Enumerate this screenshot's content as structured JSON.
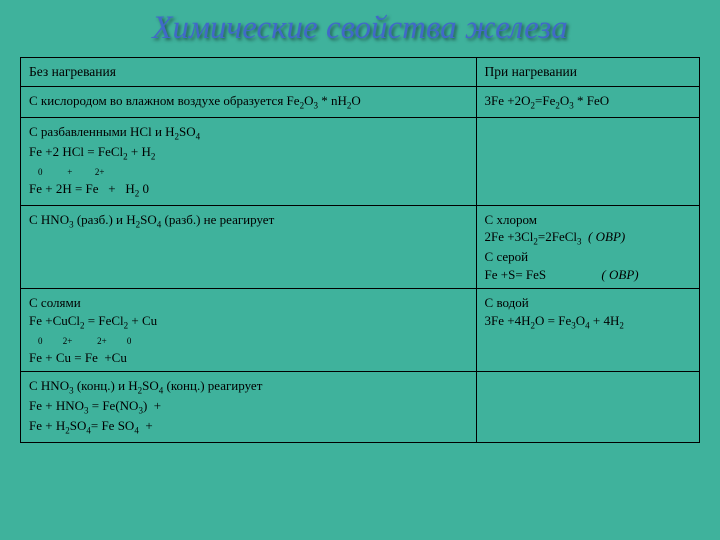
{
  "title": "Химические свойства железа",
  "table": {
    "colors": {
      "bg": "#3fb29c",
      "border": "#000000",
      "text": "#000000",
      "title": "#4169c9"
    },
    "header": {
      "left": "Без нагревания",
      "right": "При нагревании"
    },
    "rows": [
      {
        "left_html": "С кислородом во влажном воздухе образуется Fe<span class='sub'>2</span>O<span class='sub'>3</span> * nH<span class='sub'>2</span>O",
        "right_html": "3Fe +2O<span class='sub'>2</span>=Fe<span class='sub'>2</span>O<span class='sub'>3</span> * FeO"
      },
      {
        "left_html": "С разбавленными HCl и H<span class='sub'>2</span>SO<span class='sub'>4</span><br>Fe +2 HCl = FeCl<span class='sub'>2</span> + H<span class='sub'>2</span><br><span class='ox-row'>&nbsp;&nbsp;&nbsp;&nbsp;0&nbsp;&nbsp;&nbsp;&nbsp;&nbsp;&nbsp;&nbsp;&nbsp;&nbsp;&nbsp;&nbsp;+&nbsp;&nbsp;&nbsp;&nbsp;&nbsp;&nbsp;&nbsp;&nbsp;&nbsp;&nbsp;2+</span><br>Fe + 2H = Fe&nbsp;&nbsp; +&nbsp;&nbsp;&nbsp;H<span class='sub'>2</span> 0",
        "right_html": ""
      },
      {
        "left_html": "С HNO<span class='sub'>3</span> (разб.) и H<span class='sub'>2</span>SO<span class='sub'>4</span> (разб.) не реагирует",
        "right_html": "С хлором<br>2Fe +3Cl<span class='sub'>2</span>=2FeCl<span class='sub'>3</span>&nbsp;&nbsp;<i>( ОВР)</i><br>С серой<br>Fe +S= FeS&nbsp;&nbsp;&nbsp;&nbsp;&nbsp;&nbsp;&nbsp;&nbsp;&nbsp;&nbsp;&nbsp;&nbsp;&nbsp;&nbsp;&nbsp;&nbsp;&nbsp;<i>( ОВР)</i>"
      },
      {
        "left_html": "С солями<br>Fe +CuCl<span class='sub'>2</span> = FeCl<span class='sub'>2</span> + Cu<br><span class='ox-row'>&nbsp;&nbsp;&nbsp;&nbsp;0&nbsp;&nbsp;&nbsp;&nbsp;&nbsp;&nbsp;&nbsp;&nbsp;&nbsp;2+&nbsp;&nbsp;&nbsp;&nbsp;&nbsp;&nbsp;&nbsp;&nbsp;&nbsp;&nbsp;&nbsp;2+&nbsp;&nbsp;&nbsp;&nbsp;&nbsp;&nbsp;&nbsp;&nbsp;&nbsp;0</span><br>Fe + Cu = Fe&nbsp;&nbsp;+Cu",
        "right_html": "С водой<br>3Fe +4H<span class='sub'>2</span>O = Fe<span class='sub'>3</span>O<span class='sub'>4</span> + 4H<span class='sub'>2</span>"
      },
      {
        "left_html": "С HNO<span class='sub'>3</span> (конц.) и H<span class='sub'>2</span>SO<span class='sub'>4</span> (конц.) реагирует<br>Fe + HNO<span class='sub'>3</span> = Fe(NO<span class='sub'>3</span>)&nbsp;&nbsp;+<br>Fe + H<span class='sub'>2</span>SO<span class='sub'>4</span>= Fe SO<span class='sub'>4</span>&nbsp;&nbsp;+",
        "right_html": ""
      }
    ]
  }
}
